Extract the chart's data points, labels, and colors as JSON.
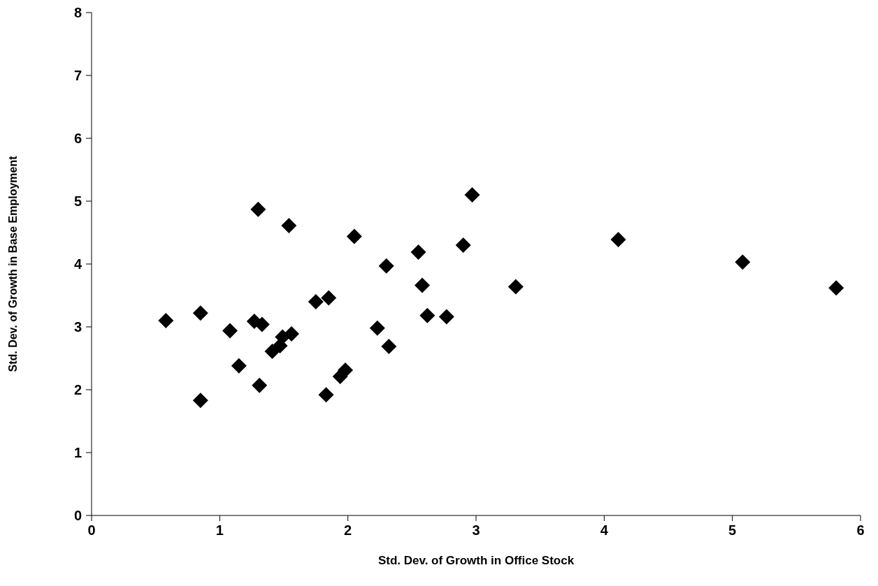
{
  "chart_data": {
    "type": "scatter",
    "xlabel": "Std. Dev. of Growth in Office Stock",
    "ylabel": "Std. Dev. of Growth in Base Employment",
    "x": [
      1.3,
      1.54,
      2.05,
      2.55,
      2.3,
      2.58,
      1.75,
      1.85,
      0.58,
      0.85,
      1.08,
      1.27,
      1.33,
      1.56,
      1.49,
      1.41,
      1.47,
      2.62,
      2.77,
      2.23,
      2.32,
      1.15,
      1.31,
      0.85,
      1.83,
      1.98,
      1.94,
      2.97,
      2.9,
      3.31,
      4.11,
      5.08,
      5.81
    ],
    "values": [
      4.87,
      4.61,
      4.44,
      4.19,
      3.97,
      3.66,
      3.4,
      3.46,
      3.1,
      3.22,
      2.94,
      3.09,
      3.04,
      2.89,
      2.84,
      2.61,
      2.7,
      3.18,
      3.16,
      2.98,
      2.69,
      2.38,
      2.07,
      1.83,
      1.92,
      2.31,
      2.21,
      5.1,
      4.3,
      3.64,
      4.39,
      4.03,
      3.62
    ],
    "color": "#000000",
    "marker": "diamond",
    "xlim": [
      0,
      6
    ],
    "xticks": [
      0,
      1,
      2,
      3,
      4,
      5,
      6
    ],
    "ylim": [
      0,
      8
    ],
    "yticks": [
      0,
      1,
      2,
      3,
      4,
      5,
      6,
      7,
      8
    ],
    "grid": false,
    "legend": false
  }
}
